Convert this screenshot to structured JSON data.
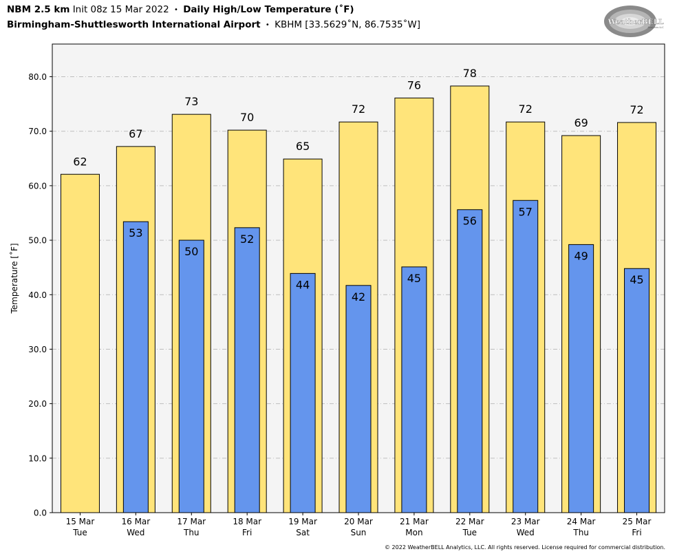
{
  "header": {
    "model": "NBM 2.5 km",
    "init": "Init 08z 15 Mar 2022",
    "separator": "•",
    "product": "Daily High/Low Temperature (˚F)",
    "location": "Birmingham-Shuttlesworth International Airport",
    "station": "KBHM [33.5629˚N, 86.7535˚W]"
  },
  "logo": {
    "line1": "WeatherBELL",
    "line2": "Analytics LLC",
    "icon": "swirl-logo-icon"
  },
  "copyright": "© 2022 WeatherBELL Analytics, LLC. All rights reserved. License required for commercial distribution.",
  "chart_data": {
    "type": "bar",
    "title": "Daily High/Low Temperature (˚F)",
    "ylabel": "Temperature [˚F]",
    "ylim": [
      0,
      86
    ],
    "yticks": [
      "0.0",
      "10.0",
      "20.0",
      "30.0",
      "40.0",
      "50.0",
      "60.0",
      "70.0",
      "80.0"
    ],
    "grid": true,
    "dates": [
      "15 Mar",
      "16 Mar",
      "17 Mar",
      "18 Mar",
      "19 Mar",
      "20 Mar",
      "21 Mar",
      "22 Mar",
      "23 Mar",
      "24 Mar",
      "25 Mar"
    ],
    "weekdays": [
      "Tue",
      "Wed",
      "Thu",
      "Fri",
      "Sat",
      "Sun",
      "Mon",
      "Tue",
      "Wed",
      "Thu",
      "Fri"
    ],
    "series": [
      {
        "name": "High",
        "color": "#FFE47A",
        "values": [
          62.1,
          67.2,
          73.1,
          70.2,
          64.9,
          71.7,
          76.1,
          78.3,
          71.7,
          69.2,
          71.6
        ],
        "labels": [
          "62",
          "67",
          "73",
          "70",
          "65",
          "72",
          "76",
          "78",
          "72",
          "69",
          "72"
        ]
      },
      {
        "name": "Low",
        "color": "#6495ED",
        "values": [
          null,
          53.4,
          50.0,
          52.3,
          43.9,
          41.7,
          45.1,
          55.6,
          57.3,
          49.2,
          44.8
        ],
        "labels": [
          "",
          "53",
          "50",
          "52",
          "44",
          "42",
          "45",
          "56",
          "57",
          "49",
          "45"
        ]
      }
    ]
  }
}
